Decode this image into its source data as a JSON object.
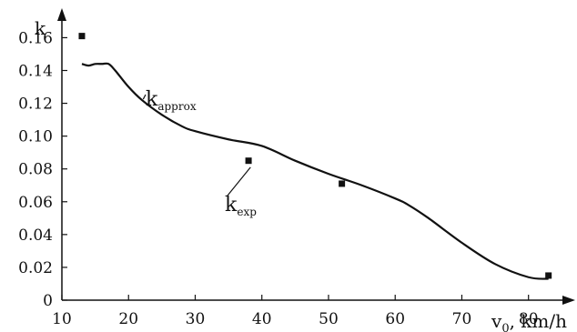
{
  "chart_data": {
    "type": "line",
    "title": "",
    "xlabel": {
      "main": "v",
      "sub": "0",
      "suffix": ", km/h"
    },
    "ylabel": "k",
    "xlim": [
      10,
      84
    ],
    "ylim": [
      0,
      0.168
    ],
    "x_ticks": [
      10,
      20,
      30,
      40,
      50,
      60,
      70,
      80
    ],
    "x_tick_labels": [
      "10",
      "20",
      "30",
      "40",
      "50",
      "60",
      "70",
      "80"
    ],
    "y_ticks": [
      0,
      0.02,
      0.04,
      0.06,
      0.08,
      0.1,
      0.12,
      0.14,
      0.16
    ],
    "y_tick_labels": [
      "0",
      "0.02",
      "0.04",
      "0.06",
      "0.08",
      "0.10",
      "0.12",
      "0.14",
      "0.16"
    ],
    "grid": false,
    "legend": "none",
    "series": [
      {
        "name": "k_approx",
        "kind": "line",
        "color": "#111111",
        "x": [
          13,
          14,
          15,
          16,
          17,
          18,
          20,
          22,
          25,
          28,
          30,
          35,
          40,
          45,
          50,
          55,
          60,
          62,
          65,
          70,
          75,
          80,
          83
        ],
        "y": [
          0.144,
          0.143,
          0.144,
          0.144,
          0.144,
          0.14,
          0.13,
          0.122,
          0.113,
          0.106,
          0.103,
          0.098,
          0.094,
          0.085,
          0.077,
          0.07,
          0.062,
          0.058,
          0.05,
          0.035,
          0.022,
          0.014,
          0.013
        ]
      },
      {
        "name": "k_exp",
        "kind": "scatter",
        "color": "#111111",
        "x": [
          13,
          38,
          52,
          83
        ],
        "y": [
          0.161,
          0.085,
          0.071,
          0.015
        ]
      }
    ],
    "annotations": [
      {
        "main": "k",
        "sub": "approx",
        "series": "k_approx"
      },
      {
        "main": "k",
        "sub": "exp",
        "series": "k_exp"
      }
    ]
  }
}
